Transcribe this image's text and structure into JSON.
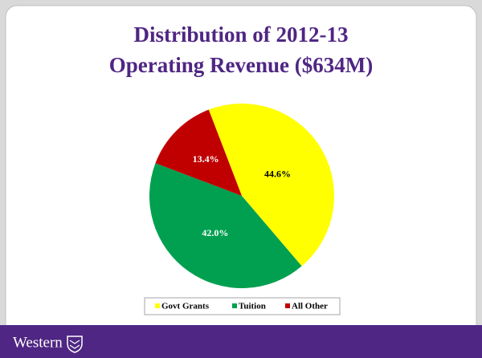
{
  "chart_data": {
    "type": "pie",
    "title": "Distribution of 2012-13\nOperating Revenue ($634M)",
    "categories": [
      "Govt Grants",
      "Tuition",
      "All Other"
    ],
    "values": [
      44.6,
      42.0,
      13.4
    ],
    "value_labels": [
      "44.6%",
      "42.0%",
      "13.4%"
    ],
    "colors": [
      "#ffff00",
      "#00a050",
      "#c00000"
    ],
    "label_colors": [
      "#000000",
      "#ffffff",
      "#ffffff"
    ],
    "legend": "bottom"
  },
  "footer": {
    "logo_text": "Western"
  }
}
